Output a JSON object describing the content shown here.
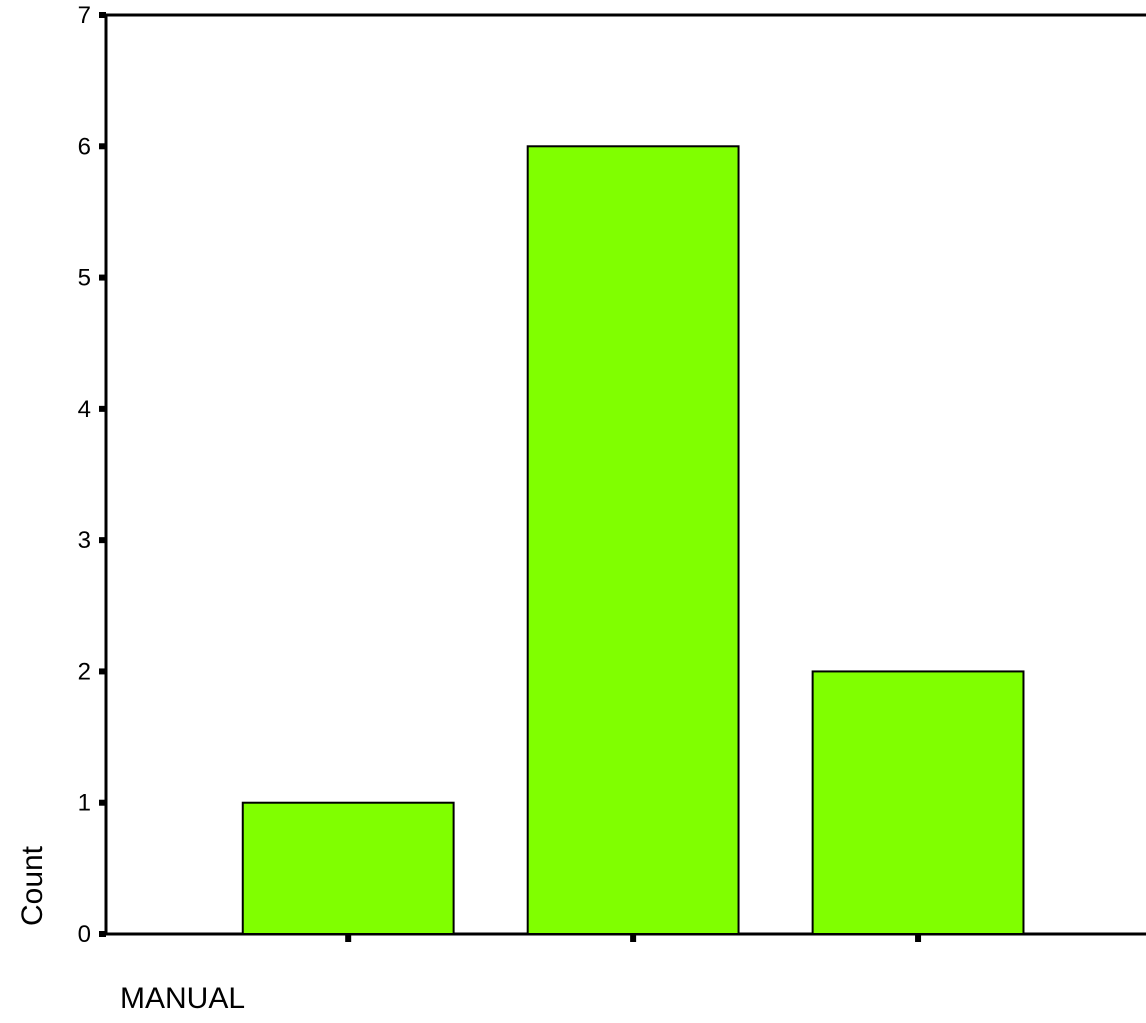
{
  "chart_data": {
    "type": "bar",
    "title": "",
    "xlabel": "MANUAL",
    "ylabel": "Count",
    "categories": [
      "",
      "",
      ""
    ],
    "values": [
      1,
      6,
      2
    ],
    "ylim": [
      0,
      7
    ],
    "yticks": [
      0,
      1,
      2,
      3,
      4,
      5,
      6,
      7
    ],
    "grid": false,
    "legend": "none",
    "colors": {
      "bar_fill": "#80ff00",
      "bar_stroke": "#000000",
      "axis": "#000000"
    }
  }
}
